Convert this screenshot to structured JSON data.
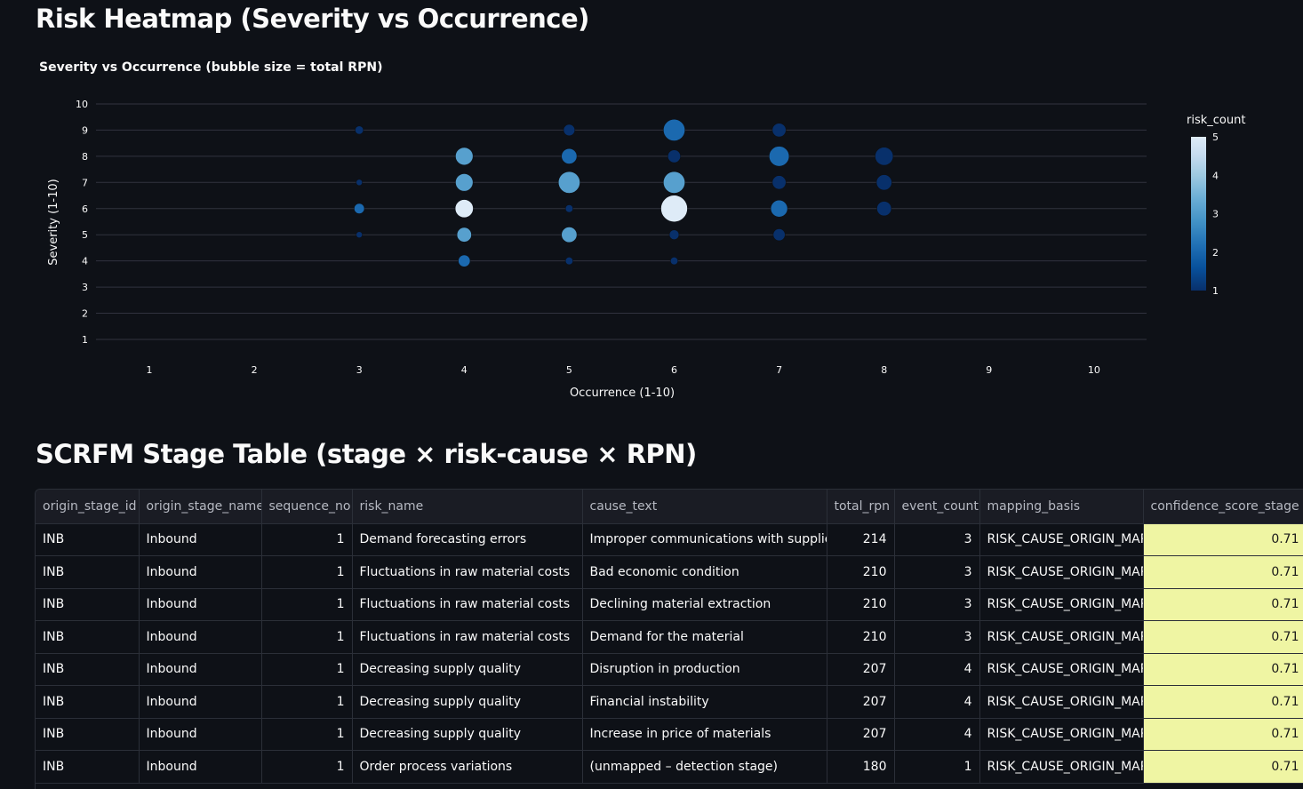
{
  "page": {
    "heatmap_header": "Risk Heatmap (Severity vs Occurrence)",
    "table_header": "SCRFM Stage Table (stage × risk-cause × RPN)"
  },
  "chart_data": {
    "type": "scatter",
    "title": "Severity vs Occurrence (bubble size = total RPN)",
    "xlabel": "Occurrence (1-10)",
    "ylabel": "Severity (1-10)",
    "xlim": [
      1,
      10
    ],
    "ylim": [
      1,
      10
    ],
    "xticks": [
      1,
      2,
      3,
      4,
      5,
      6,
      7,
      8,
      9,
      10
    ],
    "yticks": [
      1,
      2,
      3,
      4,
      5,
      6,
      7,
      8,
      9,
      10
    ],
    "grid": true,
    "colorbar": {
      "title": "risk_count",
      "ticks": [
        1,
        2,
        3,
        4,
        5
      ],
      "range": [
        1,
        5
      ]
    },
    "colorscale": [
      "#08306b",
      "#08519c",
      "#2171b5",
      "#4292c6",
      "#6baed6",
      "#9ecae1",
      "#c6dbef",
      "#deebf7"
    ],
    "points": [
      {
        "x": 3,
        "y": 9,
        "count": 1,
        "rpn": 30
      },
      {
        "x": 3,
        "y": 7,
        "count": 1,
        "rpn": 15
      },
      {
        "x": 3,
        "y": 6,
        "count": 2,
        "rpn": 45
      },
      {
        "x": 3,
        "y": 5,
        "count": 1,
        "rpn": 15
      },
      {
        "x": 4,
        "y": 8,
        "count": 3,
        "rpn": 130
      },
      {
        "x": 4,
        "y": 7,
        "count": 3,
        "rpn": 130
      },
      {
        "x": 4,
        "y": 6,
        "count": 5,
        "rpn": 140
      },
      {
        "x": 4,
        "y": 5,
        "count": 3,
        "rpn": 90
      },
      {
        "x": 4,
        "y": 4,
        "count": 2,
        "rpn": 60
      },
      {
        "x": 5,
        "y": 9,
        "count": 1,
        "rpn": 55
      },
      {
        "x": 5,
        "y": 8,
        "count": 2,
        "rpn": 100
      },
      {
        "x": 5,
        "y": 7,
        "count": 3,
        "rpn": 200
      },
      {
        "x": 5,
        "y": 6,
        "count": 1,
        "rpn": 25
      },
      {
        "x": 5,
        "y": 5,
        "count": 3,
        "rpn": 100
      },
      {
        "x": 5,
        "y": 4,
        "count": 1,
        "rpn": 25
      },
      {
        "x": 6,
        "y": 9,
        "count": 2,
        "rpn": 200
      },
      {
        "x": 6,
        "y": 8,
        "count": 1,
        "rpn": 70
      },
      {
        "x": 6,
        "y": 7,
        "count": 3,
        "rpn": 200
      },
      {
        "x": 6,
        "y": 6,
        "count": 5,
        "rpn": 300
      },
      {
        "x": 6,
        "y": 5,
        "count": 1,
        "rpn": 40
      },
      {
        "x": 6,
        "y": 4,
        "count": 1,
        "rpn": 25
      },
      {
        "x": 7,
        "y": 9,
        "count": 1,
        "rpn": 80
      },
      {
        "x": 7,
        "y": 8,
        "count": 2,
        "rpn": 170
      },
      {
        "x": 7,
        "y": 7,
        "count": 1,
        "rpn": 80
      },
      {
        "x": 7,
        "y": 6,
        "count": 2,
        "rpn": 120
      },
      {
        "x": 7,
        "y": 5,
        "count": 1,
        "rpn": 60
      },
      {
        "x": 8,
        "y": 8,
        "count": 1,
        "rpn": 140
      },
      {
        "x": 8,
        "y": 7,
        "count": 1,
        "rpn": 100
      },
      {
        "x": 8,
        "y": 6,
        "count": 1,
        "rpn": 90
      }
    ]
  },
  "table": {
    "columns": [
      "origin_stage_id",
      "origin_stage_name",
      "sequence_no",
      "risk_name",
      "cause_text",
      "total_rpn",
      "event_count",
      "mapping_basis",
      "confidence_score_stage"
    ],
    "rows": [
      [
        "INB",
        "Inbound",
        "1",
        "Demand forecasting errors",
        "Improper communications with suppliers",
        "214",
        "3",
        "RISK_CAUSE_ORIGIN_MAP",
        "0.71"
      ],
      [
        "INB",
        "Inbound",
        "1",
        "Fluctuations in raw material costs",
        "Bad economic condition",
        "210",
        "3",
        "RISK_CAUSE_ORIGIN_MAP",
        "0.71"
      ],
      [
        "INB",
        "Inbound",
        "1",
        "Fluctuations in raw material costs",
        "Declining material extraction",
        "210",
        "3",
        "RISK_CAUSE_ORIGIN_MAP",
        "0.71"
      ],
      [
        "INB",
        "Inbound",
        "1",
        "Fluctuations in raw material costs",
        "Demand for the material",
        "210",
        "3",
        "RISK_CAUSE_ORIGIN_MAP",
        "0.71"
      ],
      [
        "INB",
        "Inbound",
        "1",
        "Decreasing supply quality",
        "Disruption in production",
        "207",
        "4",
        "RISK_CAUSE_ORIGIN_MAP",
        "0.71"
      ],
      [
        "INB",
        "Inbound",
        "1",
        "Decreasing supply quality",
        "Financial instability",
        "207",
        "4",
        "RISK_CAUSE_ORIGIN_MAP",
        "0.71"
      ],
      [
        "INB",
        "Inbound",
        "1",
        "Decreasing supply quality",
        "Increase in price of materials",
        "207",
        "4",
        "RISK_CAUSE_ORIGIN_MAP",
        "0.71"
      ],
      [
        "INB",
        "Inbound",
        "1",
        "Order process variations",
        "(unmapped – detection stage)",
        "180",
        "1",
        "RISK_CAUSE_ORIGIN_MAP",
        "0.71"
      ]
    ]
  }
}
